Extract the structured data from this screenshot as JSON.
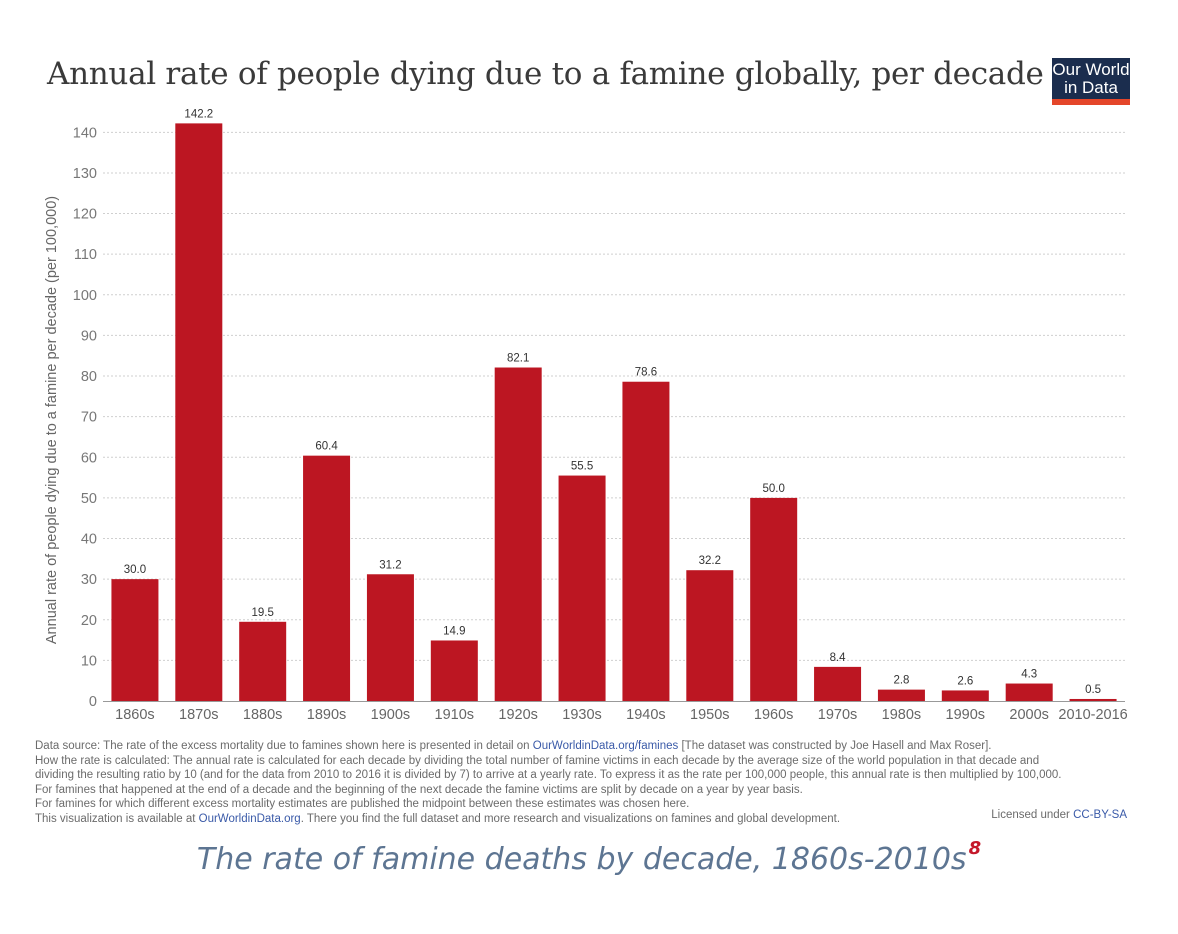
{
  "title": "Annual rate of people dying due to a famine globally, per decade",
  "logo": {
    "line1": "Our World",
    "line2": "in Data"
  },
  "chart_data": {
    "type": "bar",
    "title": "Annual rate of people dying due to a famine globally, per decade",
    "xlabel": "",
    "ylabel": "Annual rate of people dying due to a famine per decade (per 100,000)",
    "categories": [
      "1860s",
      "1870s",
      "1880s",
      "1890s",
      "1900s",
      "1910s",
      "1920s",
      "1930s",
      "1940s",
      "1950s",
      "1960s",
      "1970s",
      "1980s",
      "1990s",
      "2000s",
      "2010-2016"
    ],
    "values": [
      30.0,
      142.2,
      19.5,
      60.4,
      31.2,
      14.9,
      82.1,
      55.5,
      78.6,
      32.2,
      50.0,
      8.4,
      2.8,
      2.6,
      4.3,
      0.5
    ],
    "labels": [
      "30.0",
      "142.2",
      "19.5",
      "60.4",
      "31.2",
      "14.9",
      "82.1",
      "55.5",
      "78.6",
      "32.2",
      "50.0",
      "8.4",
      "2.8",
      "2.6",
      "4.3",
      "0.5"
    ],
    "yticks": [
      0,
      10,
      20,
      30,
      40,
      50,
      60,
      70,
      80,
      90,
      100,
      110,
      120,
      130,
      140
    ],
    "ylim": [
      0,
      145
    ],
    "grid": true,
    "bar_color": "#bc1622"
  },
  "notes": {
    "line1_pre": "Data source: The rate of the excess mortality due to famines shown here is presented in detail on ",
    "line1_link": "OurWorldinData.org/famines",
    "line1_post": " [The dataset was constructed by Joe Hasell and Max Roser].",
    "line2": "How the rate is calculated: The annual rate is calculated for each decade by dividing the total number of famine victims in each decade by the average size of the world population in that decade and",
    "line3": "dividing the resulting ratio by 10 (and for the data from 2010 to 2016 it is divided by 7) to arrive at a yearly rate. To express it as the rate per 100,000 people, this annual rate is then multiplied by 100,000.",
    "line4": "For famines that happened at the end of a decade and the beginning of the next decade the famine victims are split by decade on a year by year basis.",
    "line5": "For famines for which different excess mortality estimates are published the midpoint between these estimates was chosen here.",
    "line6_pre": "This visualization is available at ",
    "line6_link": "OurWorldinData.org",
    "line6_post": ". There you find the full dataset and more research and visualizations on famines and global development."
  },
  "license": {
    "text": "Licensed under ",
    "link": "CC-BY-SA"
  },
  "caption": {
    "text": "The rate of famine deaths by decade, 1860s-2010s",
    "footnote": "8"
  }
}
